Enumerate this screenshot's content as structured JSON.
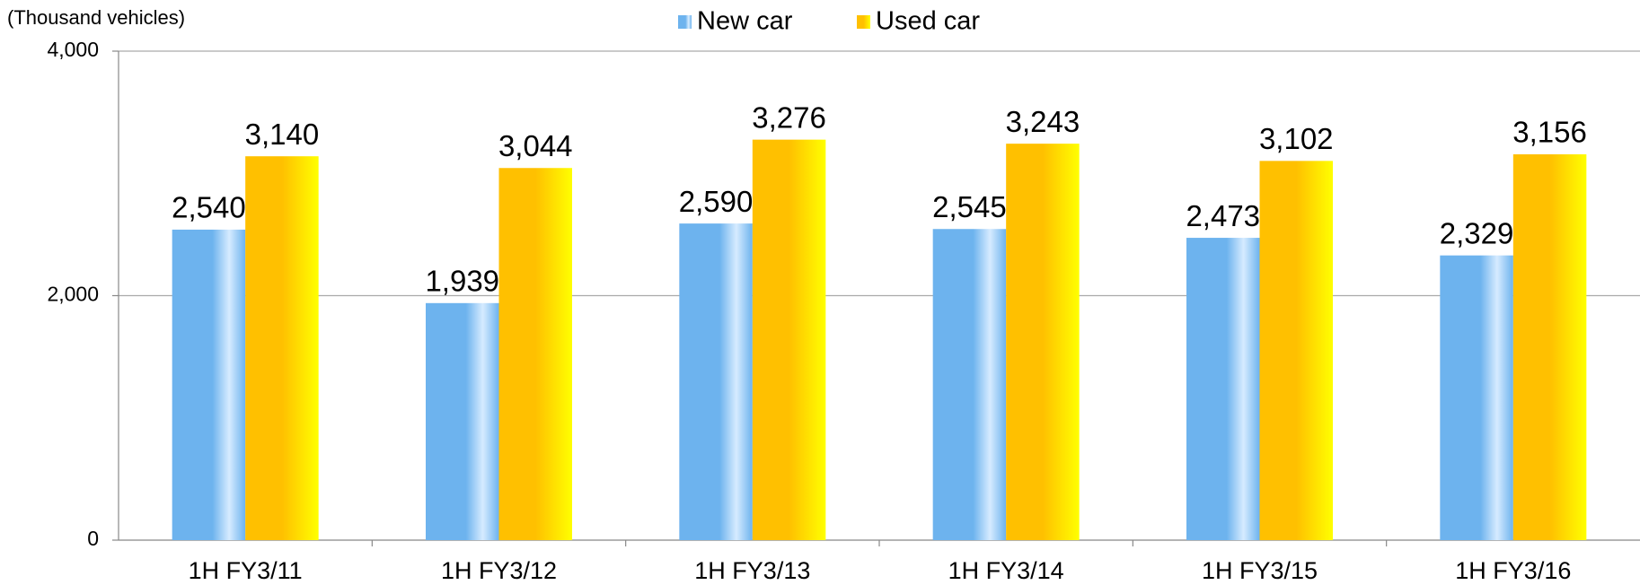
{
  "chart_data": {
    "type": "bar",
    "y_label": "(Thousand vehicles)",
    "categories": [
      "1H FY3/11",
      "1H FY3/12",
      "1H FY3/13",
      "1H FY3/14",
      "1H FY3/15",
      "1H FY3/16"
    ],
    "series": [
      {
        "name": "New car",
        "color": "#6db3ee",
        "values": [
          2540,
          1939,
          2590,
          2545,
          2473,
          2329
        ],
        "value_labels": [
          "2,540",
          "1,939",
          "2,590",
          "2,545",
          "2,473",
          "2,329"
        ]
      },
      {
        "name": "Used car",
        "color": "#ffc000",
        "values": [
          3140,
          3044,
          3276,
          3243,
          3102,
          3156
        ],
        "value_labels": [
          "3,140",
          "3,044",
          "3,276",
          "3,243",
          "3,102",
          "3,156"
        ]
      }
    ],
    "ylim": [
      0,
      4000
    ],
    "yticks": [
      0,
      {
        "value": 2000,
        "label": "2,000"
      },
      {
        "value": 4000,
        "label": "4,000"
      }
    ],
    "grid": true,
    "legend": "top"
  }
}
